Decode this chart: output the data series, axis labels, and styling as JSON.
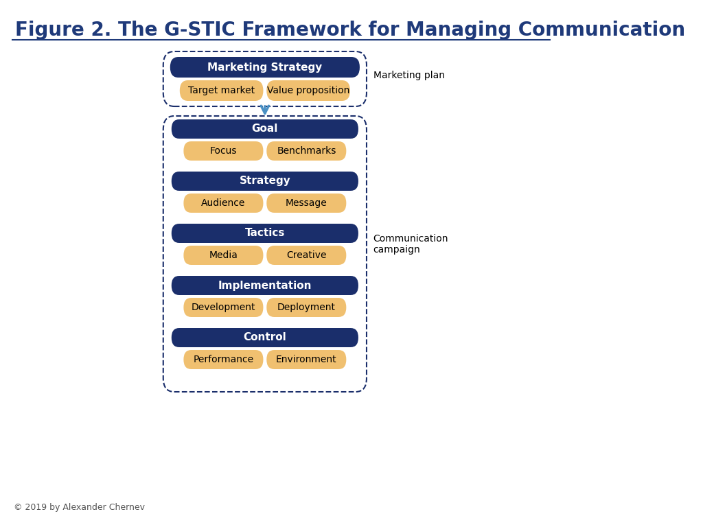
{
  "title": "Figure 2. The G-STIC Framework for Managing Communication",
  "title_color": "#1f3a7a",
  "title_fontsize": 20,
  "bg_color": "#ffffff",
  "dark_blue": "#1a2e6b",
  "gold": "#f0c070",
  "copyright": "© 2019 by Alexander Chernev",
  "marketing_plan_label": "Marketing plan",
  "communication_campaign_label": "Communication\ncampaign",
  "top_box": {
    "header": "Marketing Strategy",
    "items": [
      "Target market",
      "Value proposition"
    ]
  },
  "bottom_box": {
    "sections": [
      {
        "header": "Goal",
        "items": [
          "Focus",
          "Benchmarks"
        ]
      },
      {
        "header": "Strategy",
        "items": [
          "Audience",
          "Message"
        ]
      },
      {
        "header": "Tactics",
        "items": [
          "Media",
          "Creative"
        ]
      },
      {
        "header": "Implementation",
        "items": [
          "Development",
          "Deployment"
        ]
      },
      {
        "header": "Control",
        "items": [
          "Performance",
          "Environment"
        ]
      }
    ]
  }
}
